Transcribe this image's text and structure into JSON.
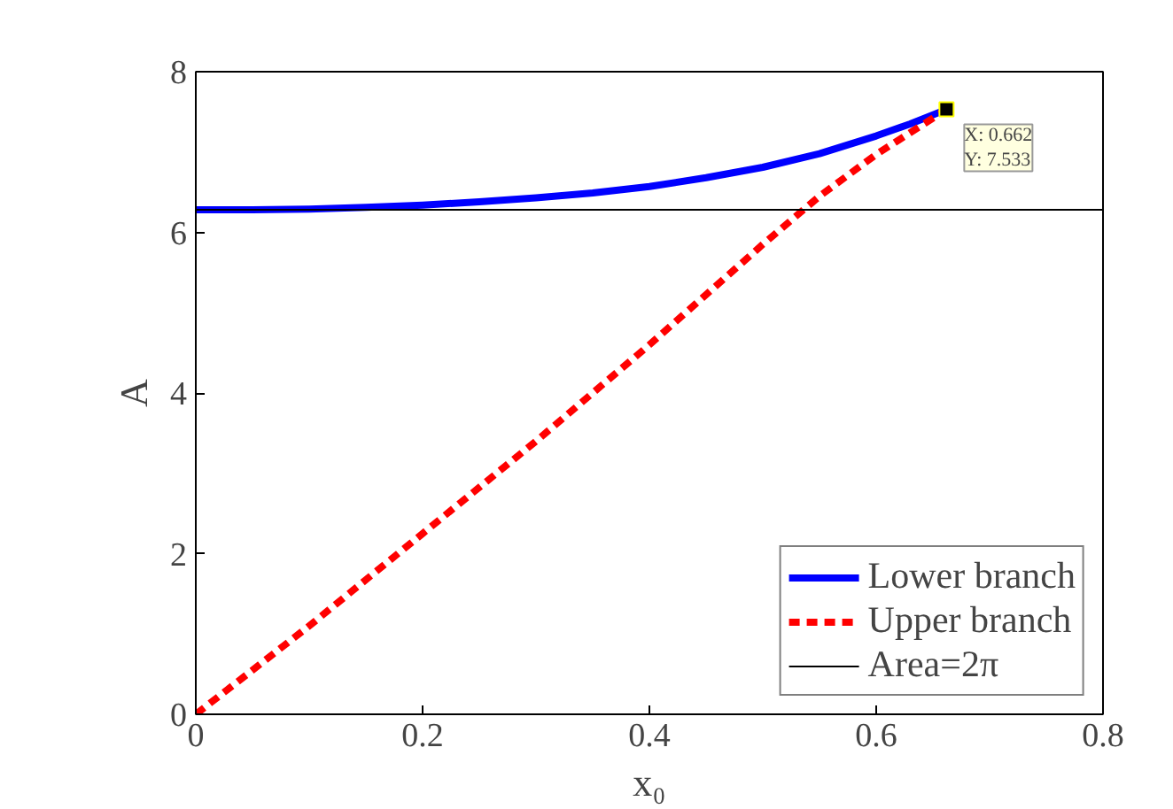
{
  "chart_data": {
    "type": "line",
    "xlabel": "x₀",
    "ylabel": "A",
    "xlim": [
      0,
      0.8
    ],
    "ylim": [
      0,
      8
    ],
    "xticks": [
      0,
      0.2,
      0.4,
      0.6,
      0.8
    ],
    "yticks": [
      0,
      2,
      4,
      6,
      8
    ],
    "grid": false,
    "legend": "bottom right",
    "series": [
      {
        "name": "Lower branch",
        "color": "#0000ff",
        "line_style": "solid",
        "x": [
          0,
          0.05,
          0.1,
          0.15,
          0.2,
          0.25,
          0.3,
          0.35,
          0.4,
          0.45,
          0.5,
          0.55,
          0.6,
          0.63,
          0.662
        ],
        "values": [
          6.28,
          6.28,
          6.29,
          6.31,
          6.34,
          6.38,
          6.43,
          6.49,
          6.57,
          6.68,
          6.81,
          6.98,
          7.2,
          7.35,
          7.53
        ]
      },
      {
        "name": "Upper branch",
        "color": "#ff0000",
        "line_style": "dashed",
        "x": [
          0,
          0.1,
          0.2,
          0.3,
          0.4,
          0.5,
          0.55,
          0.6,
          0.662
        ],
        "values": [
          0,
          1.1,
          2.25,
          3.4,
          4.6,
          5.85,
          6.45,
          6.97,
          7.53
        ]
      },
      {
        "name": "Area=2π",
        "color": "#000000",
        "line_style": "solid",
        "x": [
          0,
          0.8
        ],
        "values": [
          6.28,
          6.28
        ]
      }
    ],
    "annotations": [
      {
        "text": "X: 0.662\nY: 7.533",
        "x": 0.662,
        "y": 7.533
      }
    ]
  }
}
